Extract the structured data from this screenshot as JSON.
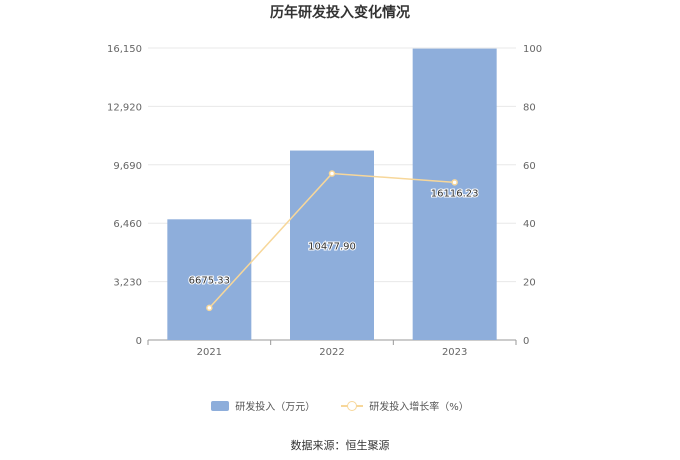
{
  "chart_data": {
    "type": "bar",
    "title": "历年研发投入变化情况",
    "categories": [
      "2021",
      "2022",
      "2023"
    ],
    "series": [
      {
        "name": "研发投入（万元）",
        "kind": "bar",
        "axis": "left",
        "values": [
          6675.33,
          10477.9,
          16116.23
        ],
        "labels": [
          "6675.33",
          "10477.90",
          "16116.23"
        ]
      },
      {
        "name": "研发投入增长率（%）",
        "kind": "line",
        "axis": "right",
        "values": [
          11,
          57,
          54
        ]
      }
    ],
    "y_left": {
      "min": 0,
      "max": 16150,
      "ticks": [
        0,
        3230,
        6460,
        9690,
        12920,
        16150
      ],
      "tick_labels": [
        "0",
        "3,230",
        "6,460",
        "9,690",
        "12,920",
        "16,150"
      ]
    },
    "y_right": {
      "min": 0,
      "max": 100,
      "ticks": [
        0,
        20,
        40,
        60,
        80,
        100
      ],
      "tick_labels": [
        "0",
        "20",
        "40",
        "60",
        "80",
        "100"
      ]
    },
    "grid": true,
    "legend_position": "bottom",
    "colors": {
      "bar": "#8eaedb",
      "line": "#f7d79a",
      "grid": "#e8e8e8",
      "axis": "#999999",
      "text": "#666666"
    }
  },
  "source_text": "数据来源：恒生聚源"
}
